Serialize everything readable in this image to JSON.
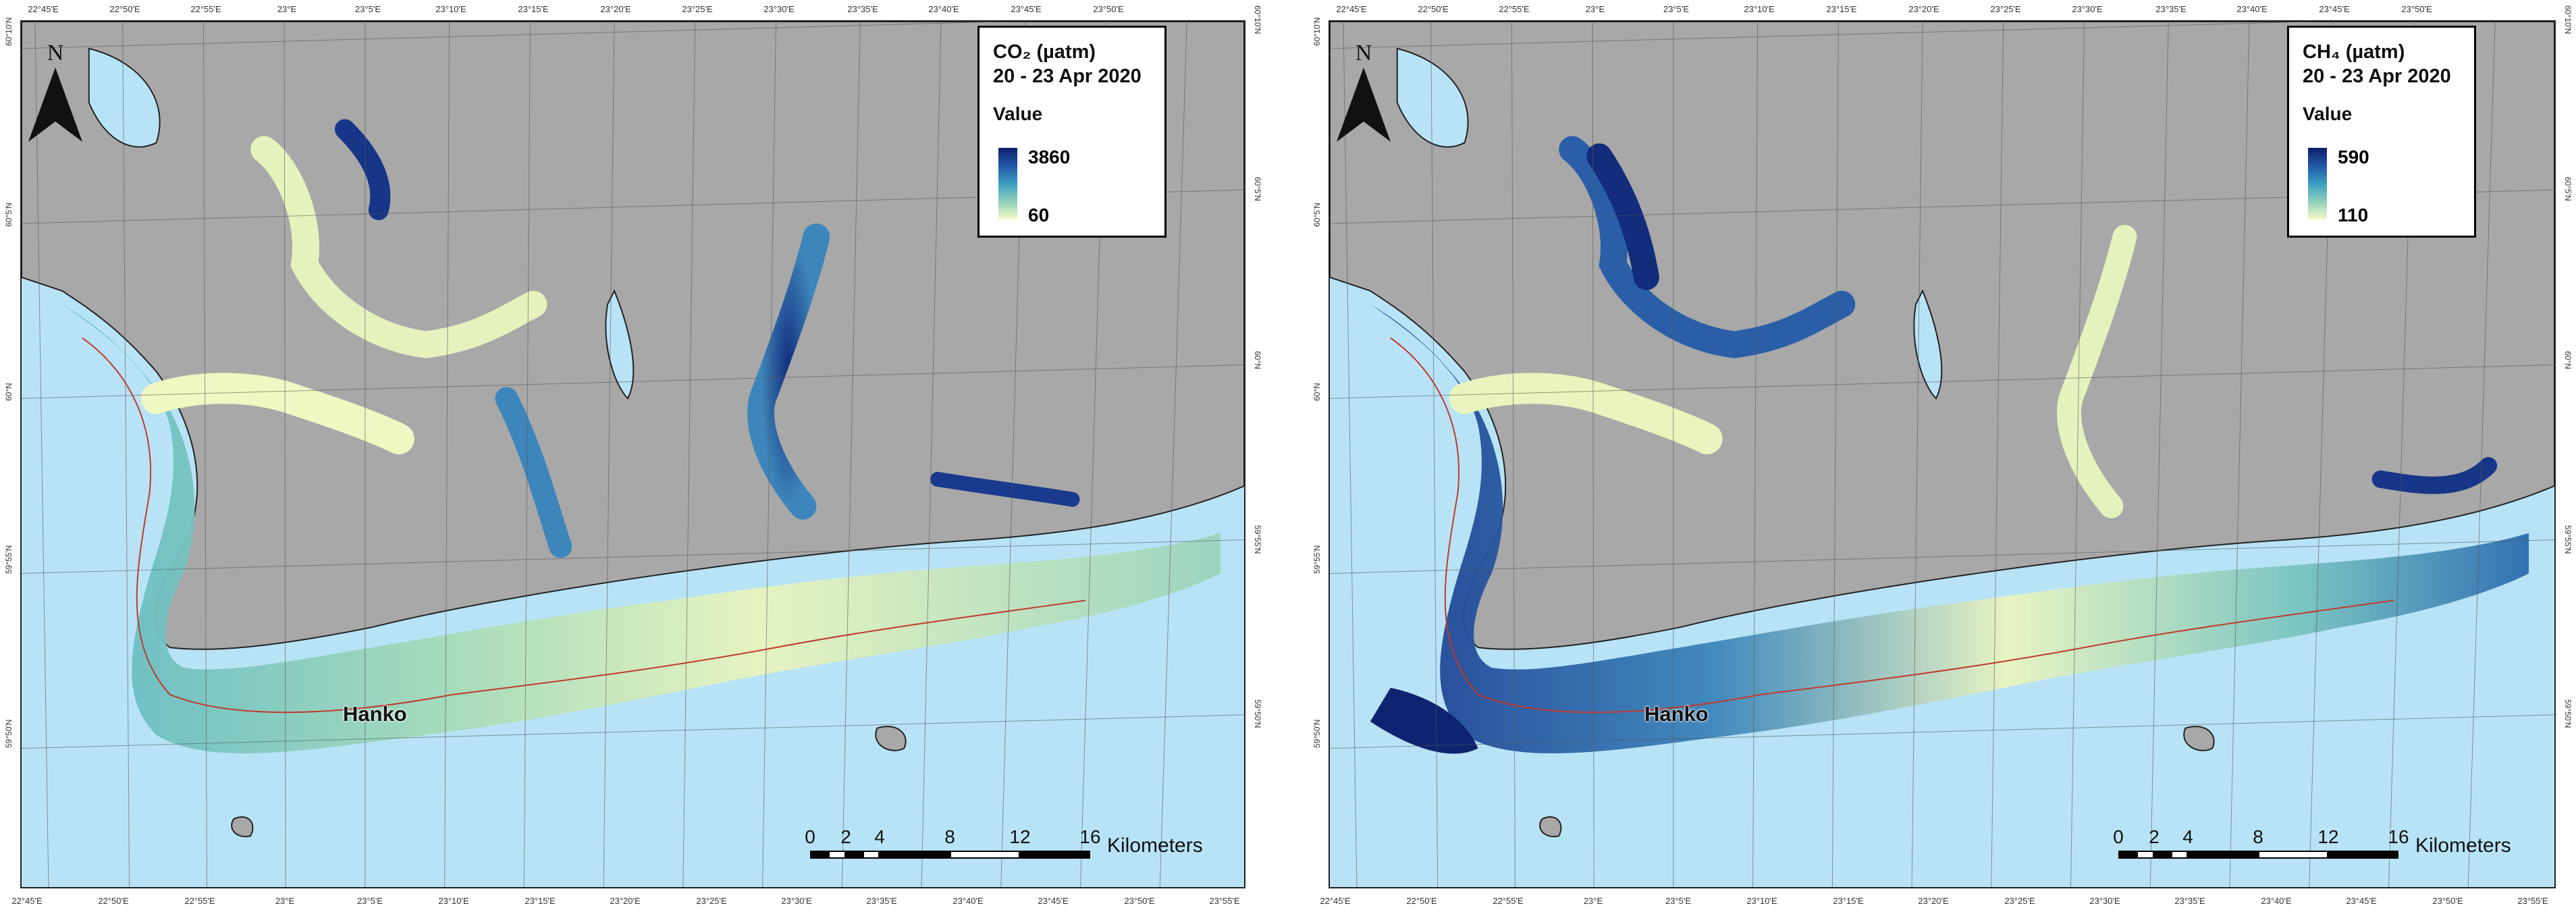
{
  "panels": [
    {
      "legend": {
        "title_line1": "CO₂ (µatm)",
        "title_line2": "20 - 23 Apr 2020",
        "value_label": "Value",
        "max": "3860",
        "min": "60"
      },
      "place_label": "Hanko",
      "north_label": "N",
      "scale": {
        "ticks": [
          "0",
          "2",
          "4",
          "8",
          "12",
          "16"
        ],
        "unit": "Kilometers"
      },
      "top_ticks": [
        "22°45'E",
        "22°50'E",
        "22°55'E",
        "23°E",
        "23°5'E",
        "23°10'E",
        "23°15'E",
        "23°20'E",
        "23°25'E",
        "23°30'E",
        "23°35'E",
        "23°40'E",
        "23°45'E",
        "23°50'E"
      ],
      "bottom_ticks": [
        "22°45'E",
        "22°50'E",
        "22°55'E",
        "23°E",
        "23°5'E",
        "23°10'E",
        "23°15'E",
        "23°20'E",
        "23°25'E",
        "23°30'E",
        "23°35'E",
        "23°40'E",
        "23°45'E",
        "23°50'E",
        "23°55'E"
      ],
      "left_ticks": [
        "60°10'N",
        "60°5'N",
        "60°N",
        "59°55'N",
        "59°50'N"
      ],
      "right_ticks": [
        "60°10'N",
        "60°5'N",
        "60°N",
        "59°55'N",
        "59°50'N"
      ]
    },
    {
      "legend": {
        "title_line1": "CH₄ (µatm)",
        "title_line2": "20 - 23 Apr 2020",
        "value_label": "Value",
        "max": "590",
        "min": "110"
      },
      "place_label": "Hanko",
      "north_label": "N",
      "scale": {
        "ticks": [
          "0",
          "2",
          "4",
          "8",
          "12",
          "16"
        ],
        "unit": "Kilometers"
      },
      "top_ticks": [
        "22°45'E",
        "22°50'E",
        "22°55'E",
        "23°E",
        "23°5'E",
        "23°10'E",
        "23°15'E",
        "23°20'E",
        "23°25'E",
        "23°30'E",
        "23°35'E",
        "23°40'E",
        "23°45'E",
        "23°50'E"
      ],
      "bottom_ticks": [
        "22°45'E",
        "22°50'E",
        "22°55'E",
        "23°E",
        "23°5'E",
        "23°10'E",
        "23°15'E",
        "23°20'E",
        "23°25'E",
        "23°30'E",
        "23°35'E",
        "23°40'E",
        "23°45'E",
        "23°50'E",
        "23°55'E"
      ],
      "left_ticks": [
        "60°10'N",
        "60°5'N",
        "60°N",
        "59°55'N",
        "59°50'N"
      ],
      "right_ticks": [
        "60°10'N",
        "60°5'N",
        "60°N",
        "59°55'N",
        "59°50'N"
      ]
    }
  ],
  "colors": {
    "sea": "#b8e3f6",
    "land": "#a8a8a8",
    "ramp_high": "#0c1f6b",
    "ramp_low": "#f6f9c4"
  }
}
